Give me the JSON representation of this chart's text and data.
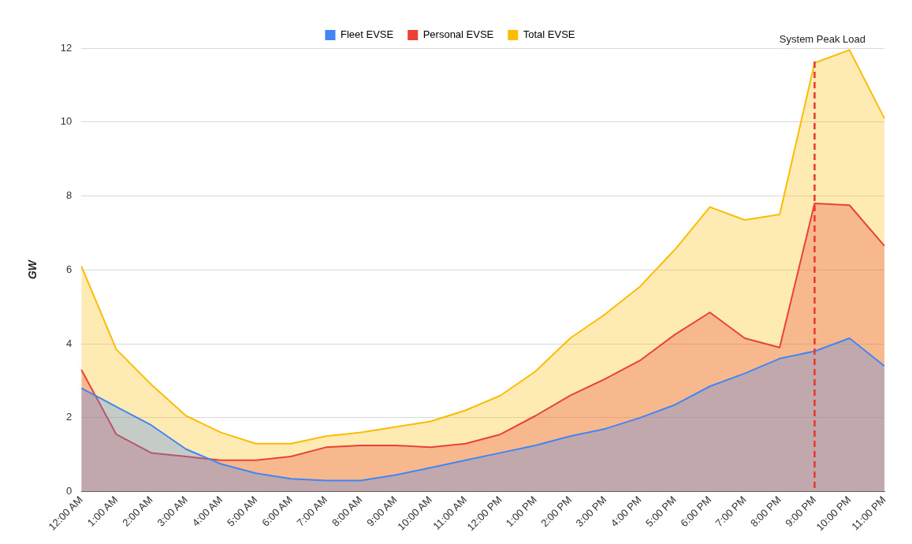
{
  "chart_data": {
    "type": "area",
    "ylabel": "GW",
    "categories": [
      "12:00 AM",
      "1:00 AM",
      "2:00 AM",
      "3:00 AM",
      "4:00 AM",
      "5:00 AM",
      "6:00 AM",
      "7:00 AM",
      "8:00 AM",
      "9:00 AM",
      "10:00 AM",
      "11:00 AM",
      "12:00 PM",
      "1:00 PM",
      "2:00 PM",
      "3:00 PM",
      "4:00 PM",
      "5:00 PM",
      "6:00 PM",
      "7:00 PM",
      "8:00 PM",
      "9:00 PM",
      "10:00 PM",
      "11:00 PM"
    ],
    "series": [
      {
        "name": "Fleet EVSE",
        "color": "#4285f4",
        "values": [
          2.8,
          2.3,
          1.8,
          1.15,
          0.75,
          0.5,
          0.35,
          0.3,
          0.3,
          0.45,
          0.65,
          0.85,
          1.05,
          1.25,
          1.5,
          1.7,
          2.0,
          2.35,
          2.85,
          3.2,
          3.6,
          3.8,
          4.15,
          3.4
        ]
      },
      {
        "name": "Personal EVSE",
        "color": "#ea4335",
        "values": [
          3.3,
          1.55,
          1.05,
          0.95,
          0.85,
          0.85,
          0.95,
          1.2,
          1.25,
          1.25,
          1.2,
          1.3,
          1.55,
          2.05,
          2.6,
          3.05,
          3.55,
          4.25,
          4.85,
          4.15,
          3.9,
          7.8,
          7.75,
          6.65
        ]
      },
      {
        "name": "Total EVSE",
        "color": "#fbbc04",
        "values": [
          6.1,
          3.85,
          2.9,
          2.05,
          1.6,
          1.3,
          1.3,
          1.5,
          1.6,
          1.75,
          1.9,
          2.2,
          2.6,
          3.25,
          4.15,
          4.8,
          5.55,
          6.55,
          7.7,
          7.35,
          7.5,
          11.6,
          11.95,
          10.1
        ]
      }
    ],
    "ylim": [
      0,
      12
    ],
    "yticks": [
      0,
      2,
      4,
      6,
      8,
      10,
      12
    ],
    "grid": "y",
    "legend": "top",
    "marker": "none",
    "line_style": "solid",
    "ref_lines": [
      {
        "axis": "x",
        "value": "9:00 PM",
        "label": "System Peak Load",
        "color": "#e8372b",
        "line_style": "dashed"
      }
    ]
  }
}
